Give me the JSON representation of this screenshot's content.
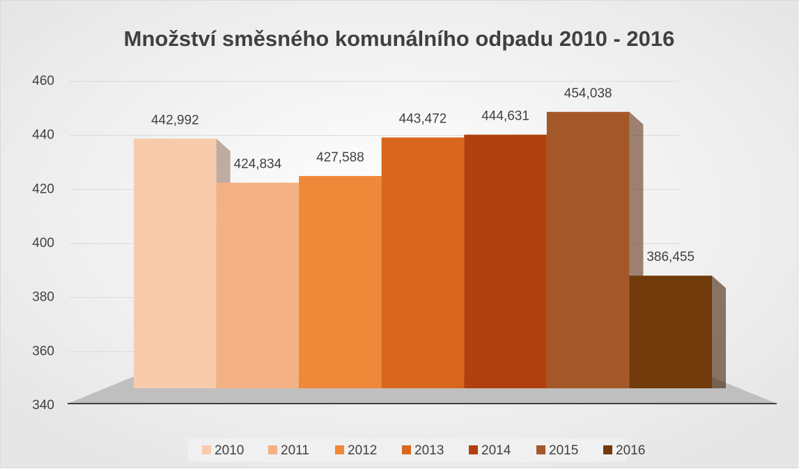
{
  "chart_data": {
    "type": "bar",
    "title": "Množství směsného komunálního odpadu 2010 - 2016",
    "ylim": [
      340,
      460
    ],
    "yticks": [
      340,
      360,
      380,
      400,
      420,
      440,
      460
    ],
    "grid": true,
    "series": [
      {
        "name": "2010",
        "color": "#f8cbad",
        "values": [
          442.992
        ],
        "value_labels": [
          "442,992"
        ]
      },
      {
        "name": "2011",
        "color": "#f4b183",
        "values": [
          424.834
        ],
        "value_labels": [
          "424,834"
        ]
      },
      {
        "name": "2012",
        "color": "#f0883a",
        "values": [
          427.588
        ],
        "value_labels": [
          "427,588"
        ]
      },
      {
        "name": "2013",
        "color": "#d8661c",
        "values": [
          443.472
        ],
        "value_labels": [
          "443,472"
        ]
      },
      {
        "name": "2014",
        "color": "#b0400e",
        "values": [
          444.631
        ],
        "value_labels": [
          "444,631"
        ]
      },
      {
        "name": "2015",
        "color": "#a4582a",
        "values": [
          454.038
        ],
        "value_labels": [
          "454,038"
        ]
      },
      {
        "name": "2016",
        "color": "#713a0a",
        "values": [
          386.455
        ],
        "value_labels": [
          "386,455"
        ]
      }
    ]
  }
}
